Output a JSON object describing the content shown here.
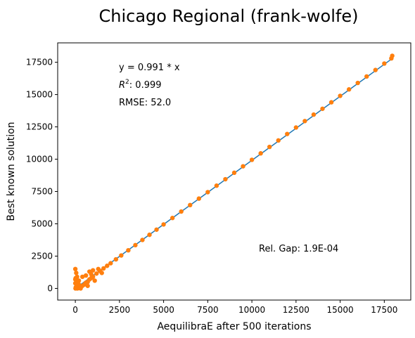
{
  "chart_data": {
    "type": "scatter",
    "title": "Chicago Regional (frank-wolfe)",
    "xlabel": "AequilibraE after 500 iterations",
    "ylabel": "Best known solution",
    "xlim": [
      -1000,
      19000
    ],
    "ylim": [
      -900,
      19000
    ],
    "xticks": [
      0,
      2500,
      5000,
      7500,
      10000,
      12500,
      15000,
      17500
    ],
    "yticks": [
      0,
      2500,
      5000,
      7500,
      10000,
      12500,
      15000,
      17500
    ],
    "grid": false,
    "legend": "none",
    "colors": {
      "points": "#ff7f0e",
      "fit_line": "#1f77b4"
    },
    "fit_line": {
      "x": [
        0,
        17900
      ],
      "y": [
        0,
        17739
      ]
    },
    "points": {
      "x": [
        0,
        50,
        100,
        150,
        200,
        30,
        80,
        120,
        10,
        20,
        300,
        400,
        500,
        600,
        700,
        800,
        900,
        1000,
        1200,
        1400,
        1600,
        1800,
        2000,
        2300,
        2600,
        3000,
        3400,
        3800,
        4200,
        4600,
        5000,
        5500,
        6000,
        6500,
        7000,
        7500,
        8000,
        8500,
        9000,
        9500,
        10000,
        10500,
        11000,
        11500,
        12000,
        12500,
        13000,
        13500,
        14000,
        14500,
        15000,
        15500,
        16000,
        16500,
        17000,
        17500,
        17900,
        17950,
        0,
        0,
        200,
        400,
        600,
        800,
        1000,
        300,
        700,
        1100,
        1500,
        900,
        1300
      ],
      "y": [
        1500,
        1200,
        900,
        600,
        300,
        100,
        50,
        0,
        0,
        800,
        100,
        200,
        300,
        450,
        500,
        700,
        800,
        900,
        1150,
        1350,
        1550,
        1750,
        1950,
        2250,
        2550,
        2950,
        3350,
        3750,
        4150,
        4550,
        4950,
        5450,
        5950,
        6450,
        6950,
        7450,
        7950,
        8450,
        8950,
        9450,
        9950,
        10450,
        10950,
        11450,
        11950,
        12450,
        12950,
        13450,
        13900,
        14400,
        14900,
        15400,
        15900,
        16400,
        16900,
        17400,
        17800,
        18000,
        400,
        700,
        600,
        900,
        1000,
        1300,
        1400,
        0,
        200,
        600,
        1200,
        1100,
        1500
      ]
    },
    "annotations": {
      "equation": "y = 0.991 * x",
      "r2_label": "R",
      "r2_exp": "2",
      "r2_value": ":  0.999",
      "rmse": "RMSE: 52.0",
      "rel_gap": "Rel. Gap: 1.9E-04"
    }
  }
}
